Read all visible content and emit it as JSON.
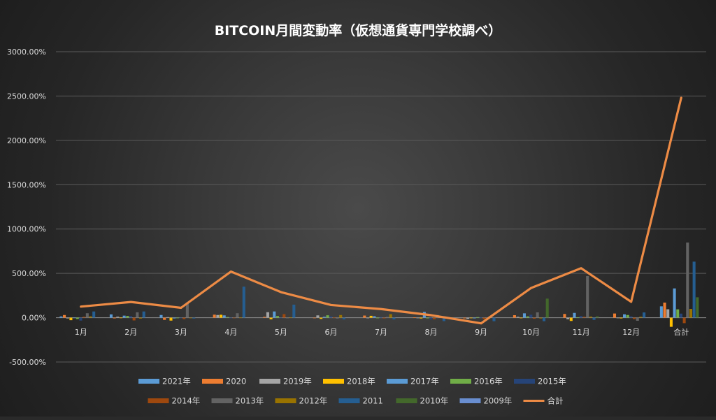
{
  "chart_data": {
    "type": "bar",
    "title": "BITCOIN月間変動率（仮想通貨専門学校調べ）",
    "categories": [
      "1月",
      "2月",
      "3月",
      "4月",
      "5月",
      "6月",
      "7月",
      "8月",
      "9月",
      "10月",
      "11月",
      "12月",
      "合計"
    ],
    "y_ticks": [
      "3000.00%",
      "2500.00%",
      "2000.00%",
      "1500.00%",
      "1000.00%",
      "500.00%",
      "0.00%",
      "-500.00%"
    ],
    "ylim": [
      -500,
      3000
    ],
    "grid": true,
    "legend_position": "bottom",
    "series": [
      {
        "name": "2021年",
        "color": "#5b9bd5",
        "values": [
          14,
          37,
          30,
          0,
          0,
          0,
          0,
          0,
          0,
          0,
          0,
          0,
          128
        ]
      },
      {
        "name": "2020",
        "color": "#ed7d31",
        "values": [
          30,
          -8,
          -25,
          34,
          9,
          -3,
          24,
          3,
          -8,
          28,
          42,
          47,
          170
        ]
      },
      {
        "name": "2019年",
        "color": "#a5a5a5",
        "values": [
          -9,
          11,
          6,
          30,
          62,
          26,
          -7,
          -4,
          -14,
          10,
          -18,
          -5,
          95
        ]
      },
      {
        "name": "2018年",
        "color": "#ffc000",
        "values": [
          -28,
          1,
          -33,
          33,
          -19,
          -14,
          21,
          -9,
          -6,
          -4,
          -37,
          -8,
          -103
        ]
      },
      {
        "name": "2017年",
        "color": "#5b9bd5",
        "values": [
          1,
          23,
          -9,
          26,
          70,
          10,
          17,
          65,
          -8,
          49,
          54,
          38,
          330
        ]
      },
      {
        "name": "2016年",
        "color": "#70ad47",
        "values": [
          -15,
          20,
          -5,
          7,
          19,
          27,
          -7,
          -8,
          6,
          15,
          5,
          30,
          94
        ]
      },
      {
        "name": "2015年",
        "color": "#264478",
        "values": [
          -33,
          17,
          -4,
          -3,
          -3,
          15,
          8,
          -19,
          2,
          33,
          19,
          14,
          46
        ]
      },
      {
        "name": "2014年",
        "color": "#9e480e",
        "values": [
          10,
          -31,
          -17,
          -2,
          40,
          2,
          -9,
          -18,
          -19,
          -12,
          10,
          -16,
          -62
        ]
      },
      {
        "name": "2013年",
        "color": "#636363",
        "values": [
          50,
          61,
          172,
          50,
          -8,
          -11,
          9,
          30,
          -1,
          60,
          470,
          -35,
          847
        ]
      },
      {
        "name": "2012年",
        "color": "#997300",
        "values": [
          15,
          -10,
          -4,
          2,
          4,
          30,
          40,
          9,
          0,
          -9,
          12,
          10,
          99
        ]
      },
      {
        "name": "2011",
        "color": "#255e91",
        "values": [
          70,
          70,
          -10,
          350,
          147,
          -20,
          -20,
          -39,
          -40,
          -40,
          -25,
          59,
          632
        ]
      },
      {
        "name": "2010年",
        "color": "#43682b",
        "values": [
          0,
          0,
          0,
          0,
          0,
          0,
          0,
          0,
          0,
          215,
          15,
          0,
          230
        ]
      },
      {
        "name": "2009年",
        "color": "#698ed0",
        "values": [
          0,
          0,
          0,
          0,
          0,
          0,
          0,
          0,
          0,
          0,
          0,
          0,
          0
        ]
      }
    ],
    "line_series": {
      "name": "合計",
      "color": "#ed8b45",
      "values": [
        125,
        177,
        111,
        520,
        288,
        143,
        97,
        28,
        -64,
        335,
        558,
        179,
        2480
      ]
    }
  }
}
